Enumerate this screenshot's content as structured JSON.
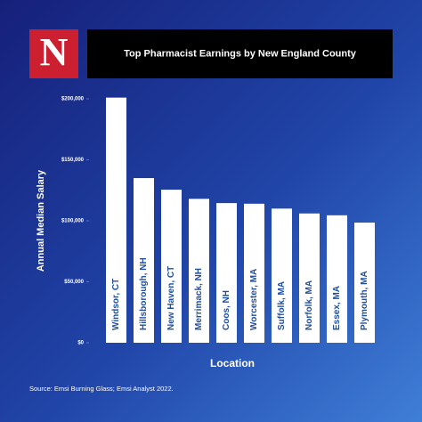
{
  "logo": "N",
  "chart_data": {
    "type": "bar",
    "title": "Top Pharmacist Earnings by New England County",
    "x_label": "Location",
    "y_label": "Annual Median Salary",
    "source": "Source: Emsi Burning Glass; Emsi Analyst 2022.",
    "categories": [
      "Windsor, CT",
      "Hillsborough, NH",
      "New Haven, CT",
      "Merrimack, NH",
      "Coos, NH",
      "Worcester, MA",
      "Suffolk, MA",
      "Norfolk, MA",
      "Essex, MA",
      "Plymouth, MA"
    ],
    "values": [
      201000,
      135000,
      125500,
      118000,
      114500,
      114000,
      110000,
      106000,
      104500,
      98500
    ],
    "color": "#ffffff",
    "ylim": [
      0,
      200000
    ],
    "yticks": [
      {
        "value": 0,
        "label": "$0"
      },
      {
        "value": 50000,
        "label": "$50,000"
      },
      {
        "value": 100000,
        "label": "$100,000"
      },
      {
        "value": 150000,
        "label": "$150,000"
      },
      {
        "value": 200000,
        "label": "$200,000"
      }
    ]
  }
}
